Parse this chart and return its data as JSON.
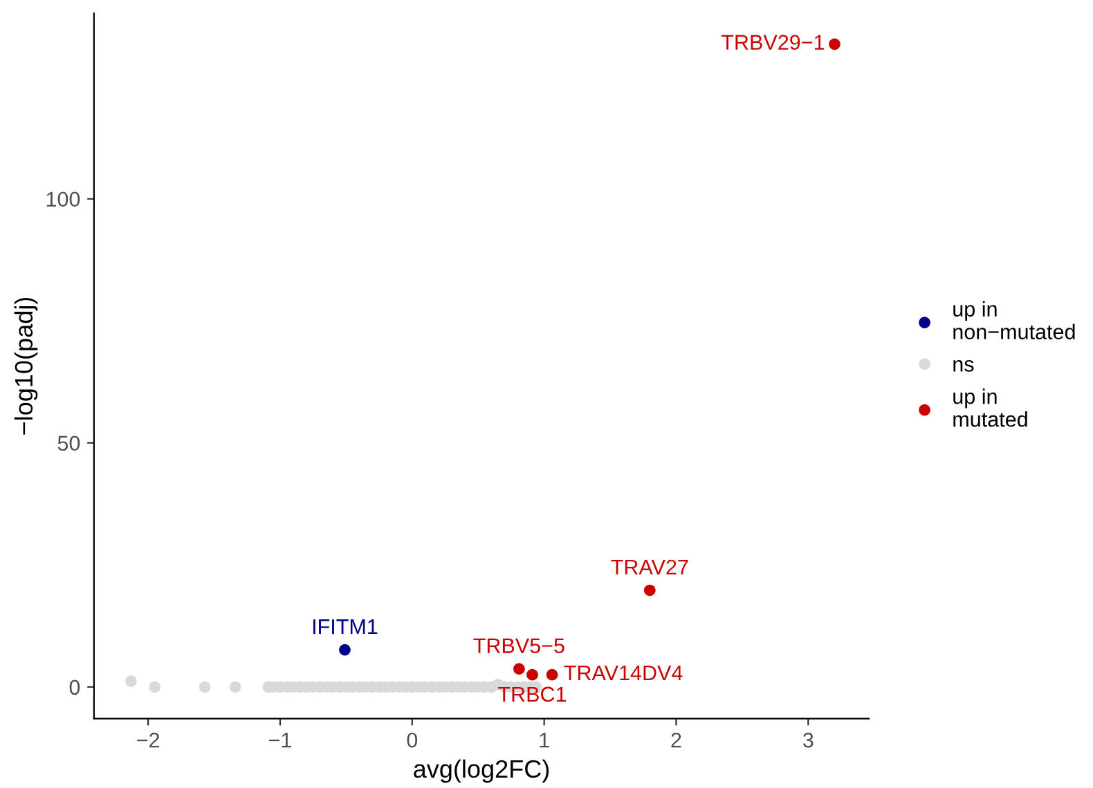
{
  "chart_data": {
    "type": "scatter",
    "xlabel": "avg(log2FC)",
    "ylabel": "−log10(padj)",
    "xlim": [
      -2.41,
      3.46
    ],
    "ylim": [
      -6.5,
      138
    ],
    "xticks": [
      {
        "value": -2,
        "label": "−2"
      },
      {
        "value": -1,
        "label": "−1"
      },
      0,
      1,
      2,
      3
    ],
    "yticks": [
      0,
      50,
      100
    ],
    "grid": false,
    "legend": "right",
    "marker": "circle",
    "series": [
      {
        "name": "up in\nnon−mutated",
        "color": "#00008b",
        "x": [
          -0.51
        ],
        "values": [
          7.6
        ],
        "value_labels": [
          "IFITM1"
        ]
      },
      {
        "name": "ns",
        "color": "#d9d9d9",
        "x": [
          -2.13,
          -1.95,
          -1.57,
          -1.34,
          -1.09,
          -1.05,
          -1.0,
          -0.95,
          -0.9,
          -0.85,
          -0.8,
          -0.75,
          -0.7,
          -0.65,
          -0.6,
          -0.55,
          -0.5,
          -0.45,
          -0.4,
          -0.35,
          -0.3,
          -0.25,
          -0.2,
          -0.15,
          -0.1,
          -0.05,
          0.0,
          0.05,
          0.1,
          0.15,
          0.2,
          0.25,
          0.3,
          0.35,
          0.4,
          0.45,
          0.5,
          0.55,
          0.6,
          0.65,
          0.7,
          0.75,
          0.8,
          0.85,
          0.9,
          0.94
        ],
        "values": [
          1.2,
          0,
          0,
          0,
          0,
          0,
          0,
          0,
          0,
          0,
          0,
          0,
          0,
          0,
          0,
          0,
          0,
          0,
          0,
          0,
          0,
          0,
          0,
          0,
          0,
          0,
          0,
          0,
          0,
          0,
          0,
          0,
          0,
          0,
          0,
          0,
          0,
          0,
          0,
          0.5,
          0,
          0,
          0,
          0,
          0,
          0
        ]
      },
      {
        "name": "up in\nmutated",
        "color": "#cc0000",
        "x": [
          3.2,
          1.8,
          0.81,
          0.91,
          1.06
        ],
        "values": [
          131.7,
          19.8,
          3.7,
          2.5,
          2.5
        ],
        "value_labels": [
          "TRBV29−1",
          "TRAV27",
          "TRBV5−5",
          "TRBC1",
          "TRAV14DV4"
        ]
      }
    ]
  }
}
